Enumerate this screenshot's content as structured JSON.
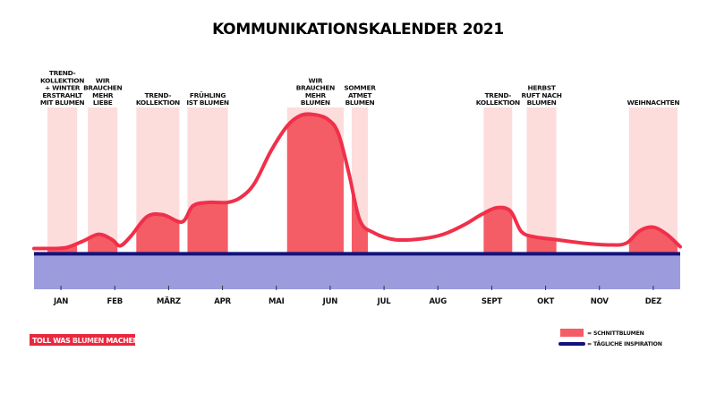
{
  "chart_data": {
    "type": "area",
    "title": "KOMMUNIKATIONSKALENDER 2021",
    "months": [
      "JAN",
      "FEB",
      "MÄRZ",
      "APR",
      "MAI",
      "JUN",
      "JUL",
      "AUG",
      "SEPT",
      "OKT",
      "NOV",
      "DEZ"
    ],
    "x_range": [
      0,
      12
    ],
    "y_range": [
      0,
      100
    ],
    "baseline_value": 20,
    "campaigns": [
      {
        "label": [
          "TREND-",
          "KOLLEKTION",
          "+ WINTER",
          "ERSTRAHLT",
          "MIT BLUMEN"
        ],
        "start": 0.25,
        "end": 0.8,
        "solid_start": 0.25,
        "solid_end": 0.8
      },
      {
        "label": [
          "WIR",
          "BRAUCHEN",
          "MEHR",
          "LIEBE"
        ],
        "start": 1.0,
        "end": 1.55,
        "solid_start": 1.0,
        "solid_end": 1.55
      },
      {
        "label": [
          "TREND-",
          "KOLLEKTION"
        ],
        "start": 1.9,
        "end": 2.7,
        "solid_start": 1.9,
        "solid_end": 2.7
      },
      {
        "label": [
          "FRÜHLING",
          "IST BLUMEN"
        ],
        "start": 2.85,
        "end": 3.6,
        "solid_start": 2.85,
        "solid_end": 3.6
      },
      {
        "label": [
          "WIR",
          "BRAUCHEN",
          "MEHR",
          "BLUMEN"
        ],
        "start": 4.7,
        "end": 5.75,
        "solid_start": 4.7,
        "solid_end": 5.75
      },
      {
        "label": [
          "SOMMER",
          "ATMET",
          "BLUMEN"
        ],
        "start": 5.9,
        "end": 6.2,
        "solid_start": 5.9,
        "solid_end": 6.2
      },
      {
        "label": [
          "TREND-",
          "KOLLEKTION"
        ],
        "start": 8.35,
        "end": 8.88,
        "solid_start": 8.35,
        "solid_end": 8.88
      },
      {
        "label": [
          "HERBST",
          "RUFT NACH",
          "BLUMEN"
        ],
        "start": 9.15,
        "end": 9.7,
        "solid_start": 9.15,
        "solid_end": 9.7
      },
      {
        "label": [
          "WEIHNACHTEN"
        ],
        "start": 11.05,
        "end": 11.95,
        "solid_start": 11.05,
        "solid_end": 11.95
      }
    ],
    "series": [
      {
        "name": "SCHNITTBLUMEN",
        "color": "#f0304a",
        "x": [
          0,
          0.3,
          0.6,
          0.9,
          1.2,
          1.45,
          1.6,
          1.8,
          2.1,
          2.4,
          2.75,
          2.95,
          3.25,
          3.6,
          3.85,
          4.1,
          4.4,
          4.7,
          4.95,
          5.2,
          5.45,
          5.65,
          5.85,
          6.05,
          6.3,
          6.7,
          7.2,
          7.6,
          8.0,
          8.3,
          8.6,
          8.85,
          9.05,
          9.3,
          9.7,
          10.2,
          10.7,
          11.0,
          11.25,
          11.5,
          11.75,
          12.0
        ],
        "y": [
          23,
          23,
          23.5,
          27,
          31,
          28,
          24.5,
          30,
          41,
          42,
          38,
          47,
          49,
          49,
          52,
          60,
          78,
          92,
          98,
          98.5,
          96,
          88,
          65,
          39,
          32,
          28,
          28.5,
          31,
          36.5,
          42,
          46,
          44,
          32.5,
          29.5,
          28,
          26,
          25,
          26,
          33,
          35,
          31,
          24
        ]
      },
      {
        "name": "TÄGLICHE INSPIRATION",
        "color": "#12127a",
        "x": [
          0,
          12
        ],
        "y": [
          20,
          20
        ]
      }
    ],
    "legend": {
      "position": "bottom-right",
      "entries": [
        "= SCHNITTBLUMEN",
        "= TÄGLICHE INSPIRATION"
      ]
    },
    "colors": {
      "band": "#fddcdc",
      "fill": "#f45c66",
      "line": "#f0304a",
      "inspiration_fill": "#9b9bdd",
      "inspiration_line": "#12127a",
      "logo": "#e8283d"
    }
  },
  "logo": {
    "text_pre": "TOLL WAS ",
    "text_emph": "BLUMEN",
    "text_post": " MACHEN",
    "mark": "®"
  }
}
